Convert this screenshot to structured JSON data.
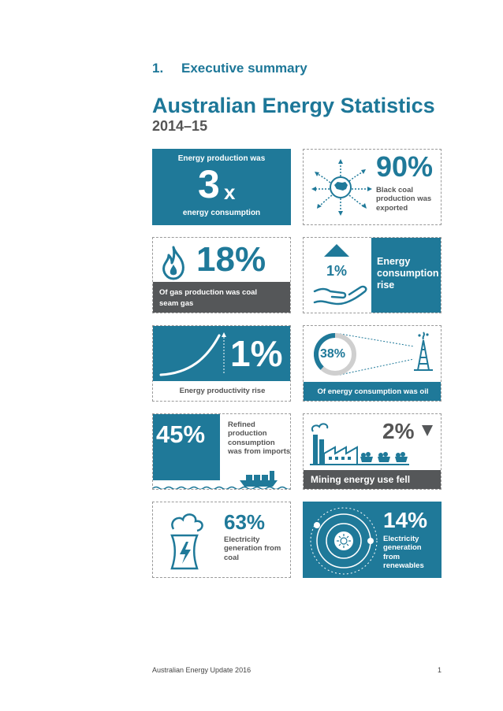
{
  "header": {
    "section_number": "1.",
    "section_title": "Executive summary",
    "title": "Australian Energy Statistics",
    "subtitle": "2014–15"
  },
  "tiles": {
    "production": {
      "top": "Energy production was",
      "big": "3",
      "suffix": "x",
      "bottom": "energy consumption"
    },
    "coal_export": {
      "value": "90%",
      "label": "Black coal production was exported"
    },
    "gas": {
      "value": "18%",
      "label": "Of gas production was coal seam gas"
    },
    "consumption": {
      "value": "1%",
      "label": "Energy consumption rise"
    },
    "productivity": {
      "value": "1%",
      "label": "Energy productivity rise"
    },
    "oil": {
      "value": "38%",
      "fraction": 0.38,
      "label": "Of energy consumption was oil"
    },
    "refined": {
      "value": "45%",
      "label": "Refined production consumption was from imports"
    },
    "mining": {
      "value": "2%",
      "label": "Mining energy use fell"
    },
    "coal_electricity": {
      "value": "63%",
      "label": "Electricity generation from coal"
    },
    "renewables": {
      "value": "14%",
      "label": "Electricity generation from renewables"
    }
  },
  "footer": {
    "publication": "Australian Energy Update 2016",
    "page": "1"
  },
  "colors": {
    "blue": "#1f7999",
    "grey": "#555759",
    "title_blue": "#1d7798"
  }
}
